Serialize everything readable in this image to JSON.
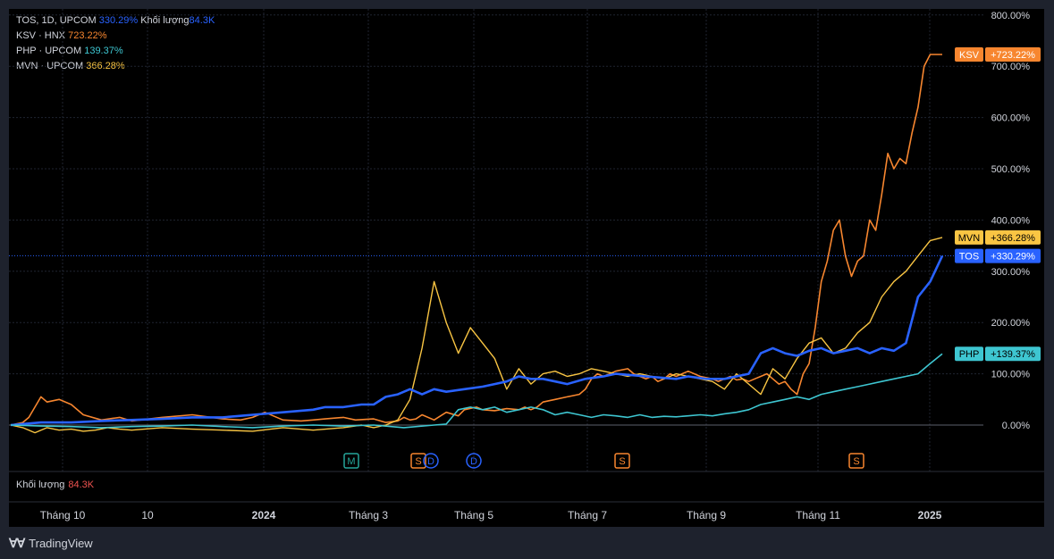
{
  "legend": [
    {
      "label": "TOS, 1D, UPCOM",
      "value": "330.29%",
      "extra_label": "Khối lượng",
      "extra_value": "84.3K",
      "color": "#2962ff"
    },
    {
      "label": "KSV · HNX",
      "value": "723.22%",
      "color": "#f7862f"
    },
    {
      "label": "PHP · UPCOM",
      "value": "139.37%",
      "color": "#3ec6d1"
    },
    {
      "label": "MVN · UPCOM",
      "value": "366.28%",
      "color": "#f9c543"
    }
  ],
  "volume": {
    "label": "Khối lượng",
    "value": "84.3K"
  },
  "brand": "TradingView",
  "chart_data": {
    "type": "line",
    "y_unit": "%",
    "ylim": [
      -20,
      800
    ],
    "y_ticks": [
      "800.00%",
      "700.00%",
      "600.00%",
      "500.00%",
      "400.00%",
      "300.00%",
      "200.00%",
      "100.00%",
      "0.00%"
    ],
    "x_ticks": [
      "Tháng 10",
      "10",
      "2024",
      "Tháng 3",
      "Tháng 5",
      "Tháng 7",
      "Tháng 9",
      "Tháng 11",
      "2025"
    ],
    "x_tick_positions": [
      0.03,
      0.125,
      0.255,
      0.372,
      0.49,
      0.617,
      0.75,
      0.875,
      1.0
    ],
    "series": [
      {
        "name": "KSV",
        "color": "#f7862f",
        "width": 1.6,
        "last_label": "+723.22%",
        "x": [
          0,
          0.02,
          0.03,
          0.05,
          0.06,
          0.08,
          0.1,
          0.12,
          0.15,
          0.18,
          0.2,
          0.25,
          0.3,
          0.35,
          0.38,
          0.4,
          0.42,
          0.45,
          0.48,
          0.5,
          0.52,
          0.55,
          0.57,
          0.6,
          0.62,
          0.64,
          0.65,
          0.66,
          0.67,
          0.68,
          0.7,
          0.72,
          0.74,
          0.75,
          0.77,
          0.78,
          0.8,
          0.82,
          0.84,
          0.85,
          0.86,
          0.87,
          0.88,
          0.9,
          0.92,
          0.94,
          0.95,
          0.96,
          0.97,
          0.98,
          0.99,
          1.0,
          1.02,
          1.03,
          1.04,
          1.05,
          1.06,
          1.07,
          1.08,
          1.09,
          1.1,
          1.12,
          1.14,
          1.16,
          1.17,
          1.18,
          1.19,
          1.2,
          1.21,
          1.22,
          1.23,
          1.24,
          1.25,
          1.26,
          1.27,
          1.28,
          1.29,
          1.3,
          1.31,
          1.32,
          1.33,
          1.34,
          1.35,
          1.36,
          1.37,
          1.38,
          1.39,
          1.4,
          1.41,
          1.42,
          1.43,
          1.44,
          1.45,
          1.46,
          1.47,
          1.48,
          1.49,
          1.5,
          1.51,
          1.52,
          1.53,
          1.54
        ],
        "y": [
          0,
          5,
          15,
          55,
          45,
          50,
          40,
          20,
          10,
          15,
          8,
          15,
          20,
          12,
          10,
          15,
          25,
          10,
          8,
          10,
          12,
          15,
          10,
          12,
          5,
          8,
          15,
          10,
          12,
          20,
          10,
          25,
          18,
          30,
          35,
          30,
          28,
          32,
          30,
          35,
          30,
          35,
          45,
          50,
          55,
          60,
          70,
          90,
          100,
          95,
          100,
          105,
          110,
          100,
          95,
          90,
          95,
          85,
          90,
          100,
          95,
          105,
          95,
          90,
          85,
          90,
          95,
          88,
          90,
          85,
          90,
          95,
          100,
          90,
          80,
          85,
          70,
          60,
          100,
          120,
          190,
          280,
          320,
          380,
          400,
          330,
          290,
          320,
          330,
          400,
          380,
          450,
          530,
          500,
          520,
          510,
          570,
          620,
          700,
          723,
          723,
          723
        ]
      },
      {
        "name": "MVN",
        "color": "#f9c543",
        "width": 1.4,
        "last_label": "+366.28%",
        "x": [
          0,
          0.02,
          0.04,
          0.06,
          0.08,
          0.1,
          0.12,
          0.14,
          0.16,
          0.18,
          0.2,
          0.25,
          0.3,
          0.35,
          0.4,
          0.45,
          0.5,
          0.55,
          0.58,
          0.6,
          0.62,
          0.64,
          0.66,
          0.68,
          0.7,
          0.72,
          0.74,
          0.76,
          0.78,
          0.8,
          0.82,
          0.84,
          0.86,
          0.88,
          0.9,
          0.92,
          0.94,
          0.96,
          0.98,
          1.0,
          1.02,
          1.04,
          1.06,
          1.08,
          1.1,
          1.12,
          1.14,
          1.16,
          1.18,
          1.2,
          1.22,
          1.24,
          1.26,
          1.28,
          1.3,
          1.32,
          1.34,
          1.36,
          1.38,
          1.4,
          1.42,
          1.44,
          1.46,
          1.48,
          1.5,
          1.52,
          1.54
        ],
        "y": [
          0,
          -5,
          -15,
          -5,
          -10,
          -8,
          -12,
          -10,
          -5,
          -8,
          -10,
          -5,
          -8,
          -10,
          -12,
          -5,
          -10,
          -5,
          0,
          -5,
          0,
          10,
          50,
          150,
          280,
          200,
          140,
          190,
          160,
          130,
          70,
          110,
          80,
          100,
          105,
          95,
          100,
          110,
          105,
          100,
          95,
          100,
          95,
          90,
          100,
          95,
          90,
          85,
          70,
          100,
          80,
          60,
          110,
          90,
          130,
          160,
          170,
          140,
          150,
          180,
          200,
          250,
          280,
          300,
          330,
          360,
          366
        ]
      },
      {
        "name": "TOS",
        "color": "#2962ff",
        "width": 2.6,
        "last_label": "+330.29%",
        "x": [
          0,
          0.05,
          0.1,
          0.15,
          0.2,
          0.25,
          0.3,
          0.35,
          0.38,
          0.4,
          0.45,
          0.5,
          0.52,
          0.55,
          0.58,
          0.6,
          0.62,
          0.64,
          0.66,
          0.68,
          0.7,
          0.72,
          0.75,
          0.78,
          0.8,
          0.82,
          0.84,
          0.86,
          0.88,
          0.9,
          0.92,
          0.95,
          0.98,
          1.0,
          1.05,
          1.1,
          1.12,
          1.15,
          1.18,
          1.2,
          1.22,
          1.24,
          1.26,
          1.28,
          1.3,
          1.32,
          1.34,
          1.36,
          1.38,
          1.4,
          1.42,
          1.44,
          1.46,
          1.48,
          1.5,
          1.52,
          1.54
        ],
        "y": [
          0,
          5,
          5,
          8,
          10,
          12,
          15,
          15,
          18,
          20,
          25,
          30,
          35,
          35,
          40,
          40,
          55,
          60,
          70,
          60,
          70,
          65,
          70,
          75,
          80,
          85,
          95,
          90,
          90,
          85,
          80,
          90,
          95,
          100,
          95,
          90,
          95,
          90,
          90,
          95,
          100,
          140,
          150,
          140,
          135,
          145,
          150,
          140,
          145,
          150,
          140,
          150,
          145,
          160,
          250,
          280,
          330
        ]
      },
      {
        "name": "PHP",
        "color": "#3ec6d1",
        "width": 1.6,
        "last_label": "+139.37%",
        "x": [
          0,
          0.05,
          0.1,
          0.15,
          0.2,
          0.25,
          0.3,
          0.35,
          0.4,
          0.45,
          0.5,
          0.55,
          0.6,
          0.65,
          0.7,
          0.72,
          0.74,
          0.76,
          0.78,
          0.8,
          0.82,
          0.84,
          0.86,
          0.88,
          0.9,
          0.92,
          0.94,
          0.96,
          0.98,
          1.0,
          1.02,
          1.04,
          1.06,
          1.08,
          1.1,
          1.12,
          1.14,
          1.16,
          1.18,
          1.2,
          1.22,
          1.24,
          1.26,
          1.28,
          1.3,
          1.32,
          1.34,
          1.36,
          1.38,
          1.4,
          1.42,
          1.44,
          1.46,
          1.48,
          1.5,
          1.52,
          1.54
        ],
        "y": [
          0,
          -2,
          -3,
          -5,
          -3,
          -2,
          0,
          -3,
          -5,
          -2,
          0,
          -2,
          0,
          -5,
          0,
          2,
          30,
          35,
          30,
          35,
          25,
          30,
          35,
          30,
          20,
          25,
          20,
          15,
          20,
          18,
          15,
          20,
          15,
          17,
          16,
          18,
          20,
          18,
          22,
          25,
          30,
          40,
          45,
          50,
          55,
          50,
          60,
          65,
          70,
          75,
          80,
          85,
          90,
          95,
          100,
          120,
          139
        ]
      }
    ],
    "markers": [
      {
        "label": "M",
        "x": 0.338,
        "kind": "square",
        "color": "#26a69a"
      },
      {
        "label": "S",
        "x": 0.413,
        "kind": "square",
        "color": "#f7862f"
      },
      {
        "label": "D",
        "x": 0.427,
        "kind": "circle",
        "color": "#2962ff"
      },
      {
        "label": "D",
        "x": 0.475,
        "kind": "circle",
        "color": "#2962ff"
      },
      {
        "label": "S",
        "x": 0.641,
        "kind": "square",
        "color": "#f7862f"
      },
      {
        "label": "S",
        "x": 0.903,
        "kind": "square",
        "color": "#f7862f"
      }
    ]
  }
}
